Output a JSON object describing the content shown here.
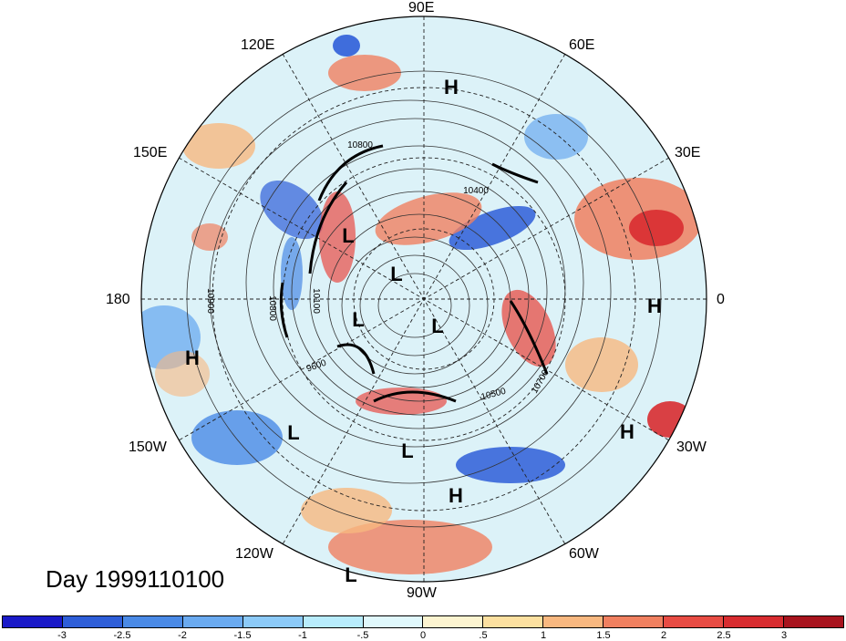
{
  "title": "Day 1999110100",
  "longitude_labels": [
    "90E",
    "60E",
    "30E",
    "0",
    "30W",
    "60W",
    "90W",
    "120W",
    "150W",
    "180",
    "150E",
    "120E"
  ],
  "pressure_centers": [
    {
      "kind": "H"
    },
    {
      "kind": "L"
    },
    {
      "kind": "L"
    },
    {
      "kind": "L"
    },
    {
      "kind": "L"
    },
    {
      "kind": "H"
    },
    {
      "kind": "H"
    },
    {
      "kind": "L"
    },
    {
      "kind": "H"
    },
    {
      "kind": "L"
    },
    {
      "kind": "H"
    },
    {
      "kind": "L"
    }
  ],
  "contour_labels": [
    "10800",
    "10400",
    "10900",
    "10800",
    "10100",
    "10500",
    "10700",
    "9600"
  ],
  "colorbar": {
    "colors": [
      "#1a1ac8",
      "#2e5ed8",
      "#4a8ae6",
      "#6aaaf0",
      "#8ccaf8",
      "#b8ecfc",
      "#e0f8fc",
      "#fcf4d0",
      "#fce0a0",
      "#f8b880",
      "#f08060",
      "#e84c44",
      "#d82c30",
      "#a8141e"
    ],
    "tick_labels": [
      "-3",
      "-2.5",
      "-2",
      "-1.5",
      "-1",
      "-.5",
      "0",
      ".5",
      "1",
      "1.5",
      "2",
      "2.5",
      "3"
    ]
  }
}
